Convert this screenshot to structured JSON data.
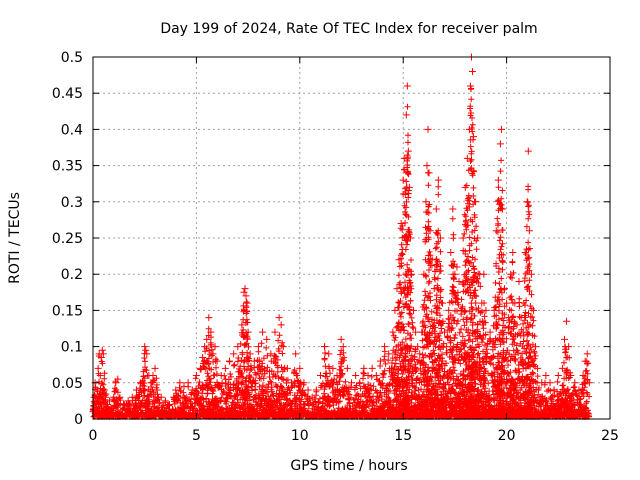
{
  "chart_data": {
    "type": "scatter",
    "title": "Day 199 of 2024, Rate Of TEC Index for receiver palm",
    "xlabel": "GPS time / hours",
    "ylabel": "ROTI / TECUs",
    "xlim": [
      0,
      25
    ],
    "ylim": [
      0,
      0.5
    ],
    "x_ticks": [
      0,
      5,
      10,
      15,
      20,
      25
    ],
    "y_ticks": [
      0,
      0.05,
      0.1,
      0.15,
      0.2,
      0.25,
      0.3,
      0.35,
      0.4,
      0.45,
      0.5
    ],
    "x_tick_labels": [
      "0",
      "5",
      "10",
      "15",
      "20",
      "25"
    ],
    "y_tick_labels": [
      "0",
      "0.05",
      "0.1",
      "0.15",
      "0.2",
      "0.25",
      "0.3",
      "0.35",
      "0.4",
      "0.45",
      "0.5"
    ],
    "grid": true,
    "marker": "+",
    "series": [
      {
        "name": "ROTI",
        "color": "#ff0000",
        "points": [
          [
            0.0,
            0.01
          ],
          [
            0.05,
            0.03
          ],
          [
            0.1,
            0.05
          ],
          [
            0.15,
            0.02
          ],
          [
            0.2,
            0.04
          ],
          [
            0.25,
            0.07
          ],
          [
            0.3,
            0.09
          ],
          [
            0.35,
            0.06
          ],
          [
            0.4,
            0.085
          ],
          [
            0.45,
            0.095
          ],
          [
            0.5,
            0.09
          ],
          [
            0.55,
            0.04
          ],
          [
            0.6,
            0.03
          ],
          [
            0.7,
            0.02
          ],
          [
            0.8,
            0.025
          ],
          [
            0.9,
            0.015
          ],
          [
            1.0,
            0.03
          ],
          [
            1.1,
            0.05
          ],
          [
            1.2,
            0.055
          ],
          [
            1.3,
            0.03
          ],
          [
            1.5,
            0.02
          ],
          [
            1.7,
            0.025
          ],
          [
            1.9,
            0.03
          ],
          [
            2.1,
            0.04
          ],
          [
            2.3,
            0.05
          ],
          [
            2.5,
            0.1
          ],
          [
            2.55,
            0.095
          ],
          [
            2.6,
            0.09
          ],
          [
            2.7,
            0.06
          ],
          [
            2.8,
            0.05
          ],
          [
            2.9,
            0.06
          ],
          [
            3.0,
            0.07
          ],
          [
            3.1,
            0.04
          ],
          [
            3.3,
            0.03
          ],
          [
            3.5,
            0.025
          ],
          [
            3.7,
            0.02
          ],
          [
            3.9,
            0.03
          ],
          [
            4.0,
            0.04
          ],
          [
            4.2,
            0.05
          ],
          [
            4.4,
            0.045
          ],
          [
            4.6,
            0.05
          ],
          [
            4.8,
            0.04
          ],
          [
            5.0,
            0.06
          ],
          [
            5.2,
            0.07
          ],
          [
            5.3,
            0.085
          ],
          [
            5.4,
            0.1
          ],
          [
            5.5,
            0.11
          ],
          [
            5.6,
            0.14
          ],
          [
            5.7,
            0.12
          ],
          [
            5.8,
            0.09
          ],
          [
            5.9,
            0.1
          ],
          [
            6.0,
            0.08
          ],
          [
            6.2,
            0.06
          ],
          [
            6.4,
            0.07
          ],
          [
            6.6,
            0.08
          ],
          [
            6.8,
            0.09
          ],
          [
            7.0,
            0.1
          ],
          [
            7.2,
            0.13
          ],
          [
            7.3,
            0.175
          ],
          [
            7.35,
            0.18
          ],
          [
            7.4,
            0.17
          ],
          [
            7.45,
            0.16
          ],
          [
            7.5,
            0.12
          ],
          [
            7.6,
            0.09
          ],
          [
            7.8,
            0.08
          ],
          [
            8.0,
            0.1
          ],
          [
            8.2,
            0.12
          ],
          [
            8.4,
            0.11
          ],
          [
            8.6,
            0.09
          ],
          [
            8.8,
            0.12
          ],
          [
            9.0,
            0.14
          ],
          [
            9.1,
            0.13
          ],
          [
            9.2,
            0.1
          ],
          [
            9.4,
            0.07
          ],
          [
            9.6,
            0.05
          ],
          [
            9.8,
            0.09
          ],
          [
            10.0,
            0.07
          ],
          [
            10.2,
            0.05
          ],
          [
            10.4,
            0.04
          ],
          [
            10.6,
            0.03
          ],
          [
            10.8,
            0.04
          ],
          [
            11.0,
            0.06
          ],
          [
            11.2,
            0.1
          ],
          [
            11.4,
            0.09
          ],
          [
            11.6,
            0.07
          ],
          [
            11.8,
            0.06
          ],
          [
            12.0,
            0.11
          ],
          [
            12.1,
            0.1
          ],
          [
            12.3,
            0.07
          ],
          [
            12.5,
            0.05
          ],
          [
            12.7,
            0.06
          ],
          [
            12.9,
            0.05
          ],
          [
            13.1,
            0.07
          ],
          [
            13.3,
            0.06
          ],
          [
            13.5,
            0.07
          ],
          [
            13.7,
            0.06
          ],
          [
            13.9,
            0.08
          ],
          [
            14.1,
            0.1
          ],
          [
            14.3,
            0.09
          ],
          [
            14.5,
            0.12
          ],
          [
            14.6,
            0.15
          ],
          [
            14.7,
            0.18
          ],
          [
            14.8,
            0.22
          ],
          [
            14.9,
            0.27
          ],
          [
            15.0,
            0.33
          ],
          [
            15.05,
            0.36
          ],
          [
            15.1,
            0.31
          ],
          [
            15.15,
            0.42
          ],
          [
            15.2,
            0.46
          ],
          [
            15.25,
            0.37
          ],
          [
            15.3,
            0.32
          ],
          [
            15.35,
            0.25
          ],
          [
            15.4,
            0.2
          ],
          [
            15.5,
            0.15
          ],
          [
            15.6,
            0.12
          ],
          [
            15.7,
            0.1
          ],
          [
            15.8,
            0.09
          ],
          [
            15.9,
            0.12
          ],
          [
            16.0,
            0.2
          ],
          [
            16.1,
            0.3
          ],
          [
            16.15,
            0.35
          ],
          [
            16.2,
            0.4
          ],
          [
            16.25,
            0.34
          ],
          [
            16.3,
            0.26
          ],
          [
            16.4,
            0.22
          ],
          [
            16.5,
            0.18
          ],
          [
            16.6,
            0.29
          ],
          [
            16.7,
            0.33
          ],
          [
            16.8,
            0.25
          ],
          [
            16.9,
            0.16
          ],
          [
            17.0,
            0.12
          ],
          [
            17.1,
            0.1
          ],
          [
            17.2,
            0.15
          ],
          [
            17.3,
            0.23
          ],
          [
            17.4,
            0.29
          ],
          [
            17.5,
            0.2
          ],
          [
            17.6,
            0.21
          ],
          [
            17.7,
            0.19
          ],
          [
            17.8,
            0.15
          ],
          [
            17.9,
            0.25
          ],
          [
            18.0,
            0.32
          ],
          [
            18.1,
            0.36
          ],
          [
            18.2,
            0.4
          ],
          [
            18.25,
            0.46
          ],
          [
            18.3,
            0.5
          ],
          [
            18.35,
            0.48
          ],
          [
            18.4,
            0.39
          ],
          [
            18.5,
            0.3
          ],
          [
            18.6,
            0.25
          ],
          [
            18.7,
            0.2
          ],
          [
            18.8,
            0.16
          ],
          [
            18.9,
            0.2
          ],
          [
            19.0,
            0.15
          ],
          [
            19.2,
            0.12
          ],
          [
            19.4,
            0.15
          ],
          [
            19.5,
            0.26
          ],
          [
            19.6,
            0.33
          ],
          [
            19.7,
            0.38
          ],
          [
            19.75,
            0.4
          ],
          [
            19.8,
            0.29
          ],
          [
            19.9,
            0.18
          ],
          [
            20.0,
            0.16
          ],
          [
            20.1,
            0.14
          ],
          [
            20.2,
            0.2
          ],
          [
            20.3,
            0.23
          ],
          [
            20.4,
            0.16
          ],
          [
            20.5,
            0.13
          ],
          [
            20.6,
            0.19
          ],
          [
            20.7,
            0.14
          ],
          [
            20.8,
            0.12
          ],
          [
            20.9,
            0.23
          ],
          [
            21.0,
            0.3
          ],
          [
            21.05,
            0.37
          ],
          [
            21.1,
            0.26
          ],
          [
            21.2,
            0.2
          ],
          [
            21.3,
            0.15
          ],
          [
            21.4,
            0.1
          ],
          [
            21.5,
            0.07
          ],
          [
            21.7,
            0.05
          ],
          [
            21.9,
            0.06
          ],
          [
            22.1,
            0.05
          ],
          [
            22.3,
            0.04
          ],
          [
            22.5,
            0.06
          ],
          [
            22.7,
            0.07
          ],
          [
            22.8,
            0.11
          ],
          [
            22.9,
            0.135
          ],
          [
            23.0,
            0.1
          ],
          [
            23.1,
            0.06
          ],
          [
            23.3,
            0.05
          ],
          [
            23.5,
            0.04
          ],
          [
            23.7,
            0.06
          ],
          [
            23.8,
            0.08
          ],
          [
            23.9,
            0.09
          ],
          [
            24.0,
            0.05
          ]
        ]
      }
    ]
  }
}
